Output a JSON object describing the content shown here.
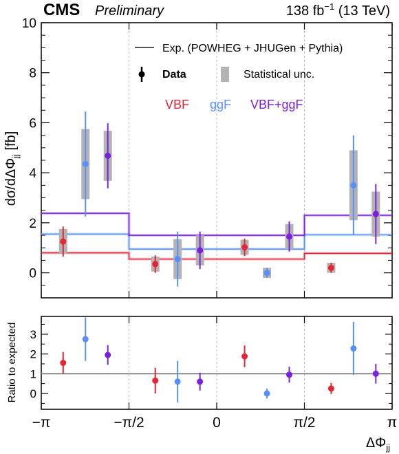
{
  "header": {
    "experiment": "CMS",
    "status": "Preliminary",
    "lumi": "138 fb",
    "lumi_exp": "−1",
    "energy": " (13 TeV)"
  },
  "legend": {
    "expected": "Exp. (POWHEG + JHUGen + Pythia)",
    "data": "Data",
    "stat": "Statistical unc.",
    "process_labels": [
      {
        "name": "VBF",
        "color": "#e42536"
      },
      {
        "name": "ggF",
        "color": "#5790fc"
      },
      {
        "name": "VBF+ggF",
        "color": "#7a21dd"
      }
    ]
  },
  "colors": {
    "vbf": "#e42536",
    "ggf": "#5790fc",
    "comb": "#7a21dd",
    "stat_band": "#b3b3b3",
    "ratio_ref": "#888888"
  },
  "chart_data": [
    {
      "type": "scatter",
      "panel": "main",
      "ylabel_main": "dσ/dΔΦ",
      "ylabel_sub": "jj",
      "ylabel_unit": " [fb]",
      "ylim": [
        -1,
        10
      ],
      "yticks": [
        0,
        2,
        4,
        6,
        8,
        10
      ],
      "bin_edges": [
        -3.1416,
        -1.5708,
        0,
        1.5708,
        3.1416
      ],
      "expected": [
        {
          "name": "VBF",
          "values": [
            0.8,
            0.55,
            0.55,
            0.78
          ]
        },
        {
          "name": "ggF",
          "values": [
            1.55,
            0.95,
            0.95,
            1.52
          ]
        },
        {
          "name": "VBF+ggF",
          "values": [
            2.38,
            1.5,
            1.5,
            2.3
          ]
        }
      ],
      "series": [
        {
          "name": "VBF",
          "x": [
            -2.75,
            -1.1,
            0.5,
            2.05
          ],
          "y": [
            1.25,
            0.35,
            1.02,
            0.2
          ],
          "err": [
            0.6,
            0.35,
            0.35,
            0.2
          ],
          "stat": [
            0.5,
            0.3,
            0.3,
            0.2
          ]
        },
        {
          "name": "ggF",
          "x": [
            -2.35,
            -0.7,
            0.9,
            2.45
          ],
          "y": [
            4.35,
            0.55,
            0.0,
            3.5
          ],
          "err": [
            2.1,
            1.1,
            0.2,
            2.0
          ],
          "stat": [
            1.4,
            0.8,
            0.2,
            1.4
          ]
        },
        {
          "name": "VBF+ggF",
          "x": [
            -1.95,
            -0.3,
            1.3,
            2.85
          ],
          "y": [
            4.68,
            0.9,
            1.45,
            2.35
          ],
          "err": [
            1.3,
            0.75,
            0.6,
            1.2
          ],
          "stat": [
            1.0,
            0.6,
            0.5,
            0.9
          ]
        }
      ]
    },
    {
      "type": "scatter",
      "panel": "ratio",
      "ylabel": "Ratio to expected",
      "ylim": [
        -0.8,
        3.9
      ],
      "yticks": [
        0,
        1,
        2,
        3
      ],
      "reference": 1,
      "xlabel_main": "ΔΦ",
      "xlabel_sub": "jj",
      "xlim": [
        -3.1416,
        3.1416
      ],
      "xticks": [
        {
          "value": -3.1416,
          "label": "−π"
        },
        {
          "value": -1.5708,
          "label": "−π/2"
        },
        {
          "value": 0,
          "label": "0"
        },
        {
          "value": 1.5708,
          "label": "π/2"
        },
        {
          "value": 3.1416,
          "label": "π"
        }
      ],
      "series": [
        {
          "name": "VBF",
          "x": [
            -2.75,
            -1.1,
            0.5,
            2.05
          ],
          "y": [
            1.55,
            0.65,
            1.88,
            0.25
          ],
          "err": [
            0.55,
            0.65,
            0.55,
            0.28
          ]
        },
        {
          "name": "ggF",
          "x": [
            -2.35,
            -0.7,
            0.9,
            2.45
          ],
          "y": [
            2.75,
            0.6,
            0.0,
            2.28
          ],
          "err": [
            1.1,
            1.05,
            0.25,
            1.35
          ]
        },
        {
          "name": "VBF+ggF",
          "x": [
            -1.95,
            -0.3,
            1.3,
            2.85
          ],
          "y": [
            1.95,
            0.6,
            0.95,
            1.0
          ],
          "err": [
            0.5,
            0.45,
            0.4,
            0.5
          ]
        }
      ]
    }
  ]
}
